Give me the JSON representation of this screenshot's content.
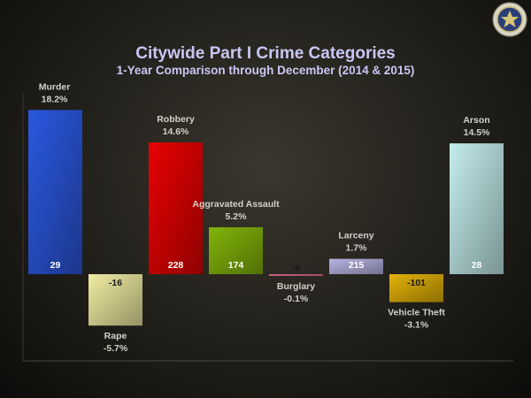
{
  "chart_data": {
    "type": "bar",
    "title": "Citywide Part I Crime Categories",
    "subtitle": "1-Year Comparison through December (2014 & 2015)",
    "xlabel": "",
    "ylabel": "",
    "ylim": [
      -6.5,
      19.5
    ],
    "grid": false,
    "legend": "none",
    "categories": [
      "Murder",
      "Rape",
      "Robbery",
      "Aggravated Assault",
      "Burglary",
      "Larceny",
      "Vehicle Theft",
      "Arson"
    ],
    "values": [
      18.2,
      -5.7,
      14.6,
      5.2,
      -0.1,
      1.7,
      -3.1,
      14.5
    ],
    "value_labels": [
      "18.2%",
      "-5.7%",
      "14.6%",
      "5.2%",
      "-0.1%",
      "1.7%",
      "-3.1%",
      "14.5%"
    ],
    "count_labels": [
      "29",
      "-16",
      "228",
      "174",
      "-6",
      "215",
      "-101",
      "28"
    ],
    "colors": [
      "#2b58e0",
      "#f0eca2",
      "#e80202",
      "#82b40a",
      "#e06a94",
      "#b8b4e4",
      "#e2b208",
      "#c4eded"
    ]
  }
}
